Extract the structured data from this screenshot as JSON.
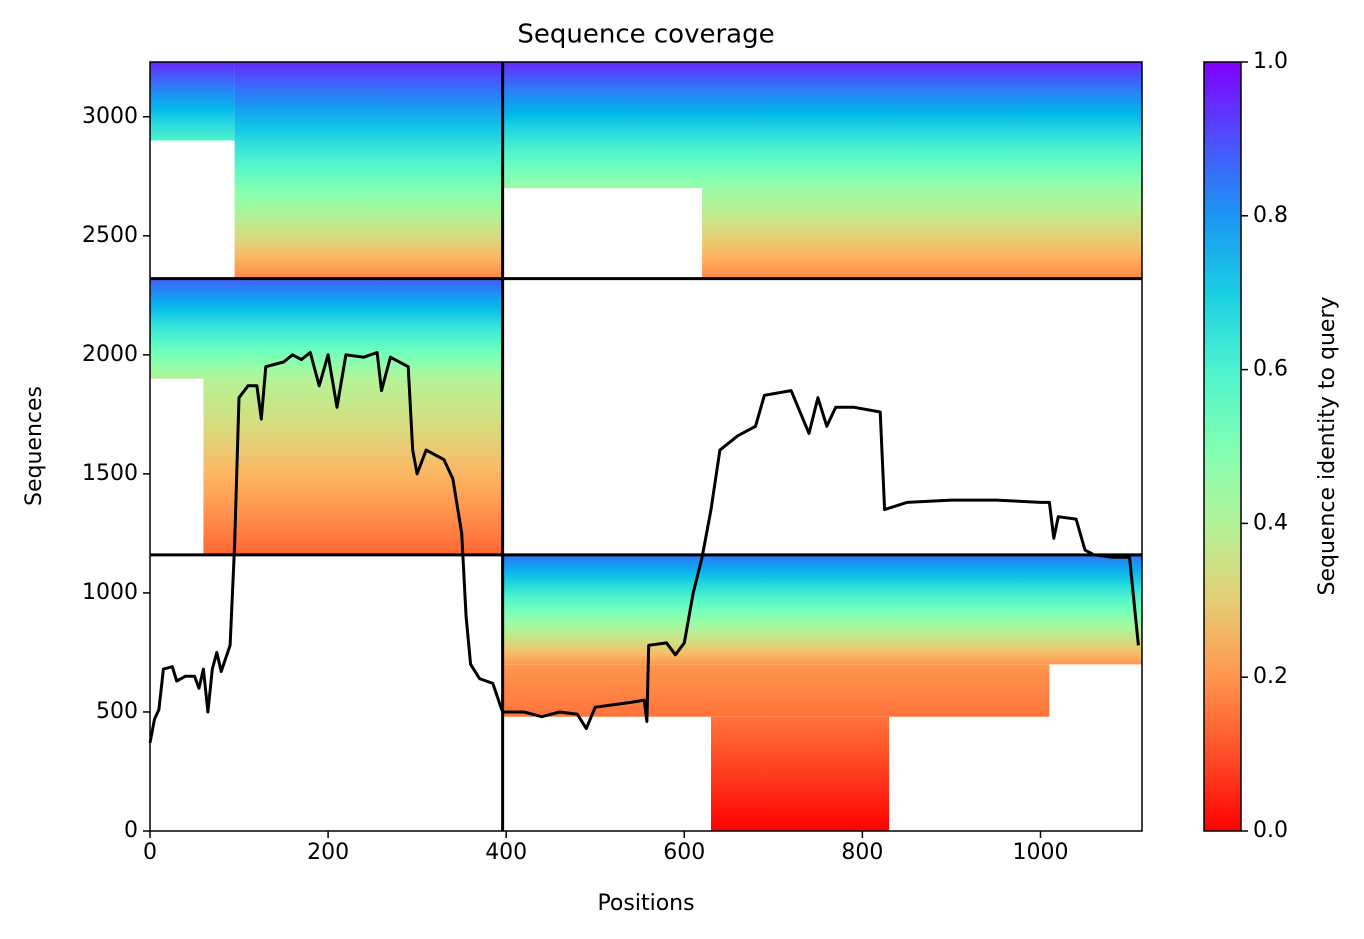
{
  "chart_data": {
    "type": "coverage",
    "title": "Sequence coverage",
    "x_label": "Positions",
    "y_label": "Sequences",
    "colorbar_label": "Sequence identity to query",
    "colormap": "rainbow_r",
    "xlim": [
      0,
      1114
    ],
    "ylim": [
      0,
      3230
    ],
    "xticks": [
      0,
      200,
      400,
      600,
      800,
      1000
    ],
    "yticks": [
      0,
      500,
      1000,
      1500,
      2000,
      2500,
      3000
    ],
    "clim": [
      0,
      1
    ],
    "cticks": [
      {
        "value": 0,
        "label": "0.0"
      },
      {
        "value": 0.2,
        "label": "0.2"
      },
      {
        "value": 0.4,
        "label": "0.4"
      },
      {
        "value": 0.6,
        "label": "0.6"
      },
      {
        "value": 0.8,
        "label": "0.8"
      },
      {
        "value": 1,
        "label": "1.0"
      }
    ],
    "blocks": [
      {
        "x": [
          95,
          396
        ],
        "y": [
          2320,
          3230
        ],
        "identity": [
          0.18,
          0.95
        ]
      },
      {
        "x": [
          0,
          95
        ],
        "y": [
          2900,
          3230
        ],
        "identity": [
          0.6,
          0.95
        ]
      },
      {
        "x": [
          396,
          1114
        ],
        "y": [
          2700,
          3230
        ],
        "identity": [
          0.45,
          0.95
        ]
      },
      {
        "x": [
          620,
          1114
        ],
        "y": [
          2320,
          2700
        ],
        "identity": [
          0.18,
          0.45
        ]
      },
      {
        "x": [
          0,
          396
        ],
        "y": [
          1900,
          2320
        ],
        "identity": [
          0.4,
          0.88
        ]
      },
      {
        "x": [
          60,
          396
        ],
        "y": [
          1160,
          1900
        ],
        "identity": [
          0.13,
          0.4
        ]
      },
      {
        "x": [
          396,
          1114
        ],
        "y": [
          700,
          1160
        ],
        "identity": [
          0.2,
          0.85
        ]
      },
      {
        "x": [
          396,
          1010
        ],
        "y": [
          480,
          700
        ],
        "identity": [
          0.15,
          0.2
        ]
      },
      {
        "x": [
          630,
          830
        ],
        "y": [
          0,
          480
        ],
        "identity": [
          0.0,
          0.15
        ]
      }
    ],
    "dividers": {
      "x": [
        396
      ],
      "y": [
        1160,
        2320
      ]
    },
    "coverage": {
      "color": "#000000",
      "x": [
        0,
        5,
        10,
        15,
        25,
        30,
        40,
        50,
        55,
        60,
        65,
        70,
        75,
        80,
        90,
        95,
        100,
        110,
        120,
        125,
        130,
        150,
        160,
        170,
        180,
        190,
        200,
        210,
        220,
        240,
        255,
        260,
        270,
        290,
        295,
        300,
        310,
        320,
        330,
        340,
        350,
        355,
        360,
        370,
        385,
        394,
        396,
        420,
        440,
        460,
        480,
        490,
        500,
        540,
        555,
        558,
        560,
        580,
        590,
        600,
        610,
        620,
        630,
        640,
        660,
        680,
        690,
        720,
        740,
        750,
        760,
        770,
        790,
        820,
        825,
        850,
        900,
        950,
        1000,
        1010,
        1015,
        1020,
        1040,
        1050,
        1060,
        1080,
        1100,
        1110
      ],
      "y": [
        370,
        470,
        510,
        680,
        690,
        630,
        650,
        650,
        600,
        680,
        500,
        680,
        750,
        670,
        780,
        1200,
        1820,
        1870,
        1870,
        1730,
        1950,
        1970,
        2000,
        1980,
        2010,
        1870,
        2000,
        1780,
        2000,
        1990,
        2010,
        1850,
        1990,
        1950,
        1600,
        1500,
        1600,
        1580,
        1560,
        1480,
        1250,
        900,
        700,
        640,
        620,
        520,
        500,
        500,
        480,
        500,
        490,
        430,
        520,
        540,
        550,
        460,
        780,
        790,
        740,
        790,
        1000,
        1150,
        1350,
        1600,
        1660,
        1700,
        1830,
        1850,
        1670,
        1820,
        1700,
        1780,
        1780,
        1760,
        1350,
        1380,
        1390,
        1390,
        1380,
        1380,
        1230,
        1320,
        1310,
        1180,
        1160,
        1150,
        1150,
        780
      ]
    }
  }
}
